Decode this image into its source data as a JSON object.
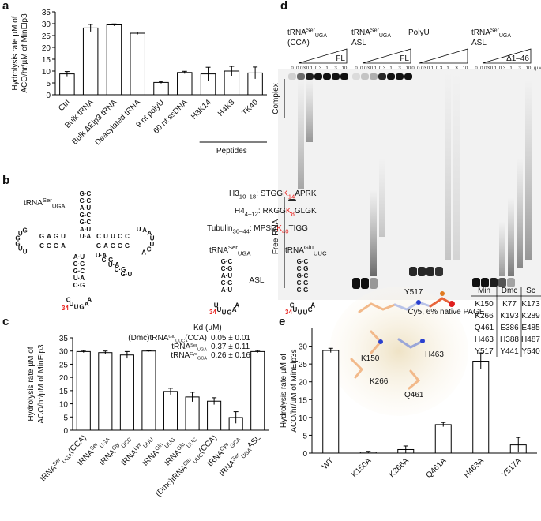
{
  "chart_data": [
    {
      "type": "bar",
      "panel": "a",
      "ylabel": [
        "Hydrolysis rate µM of",
        "ACO/hr/µM of MinElp3"
      ],
      "categories": [
        "Ctrl",
        "Bulk tRNA",
        "Bulk ΔElp3 tRNA",
        "Deacylated tRNA",
        "9 nt polyU",
        "60 nt ssDNA",
        "H3K14",
        "H4K8",
        "TK40"
      ],
      "values": [
        8.8,
        28.2,
        29.5,
        26,
        5.2,
        9.4,
        8.8,
        10,
        9.2
      ],
      "errors": [
        1,
        1.5,
        0.4,
        0.5,
        0.4,
        0.5,
        2.8,
        2,
        2.5
      ],
      "group_label": "Peptides",
      "color": "#ffffff",
      "ylim": [
        0,
        35
      ],
      "yticks": [
        0,
        5,
        10,
        15,
        20,
        25,
        30,
        35
      ]
    },
    {
      "type": "bar",
      "panel": "c",
      "ylabel": [
        "Hydrolysis rate µM of",
        "ACO/hr/µM of MinElp3"
      ],
      "categories": [
        [
          {
            "text": "tRNA"
          },
          {
            "text": "Ser",
            "pos": "sup"
          },
          {
            "text": "UGA",
            "pos": "sub"
          },
          {
            "text": "(CCA)"
          }
        ],
        [
          {
            "text": "tRNA"
          },
          {
            "text": "Ser",
            "pos": "sup"
          },
          {
            "text": "UGA",
            "pos": "sub"
          }
        ],
        [
          {
            "text": "tRNA"
          },
          {
            "text": "Gly",
            "pos": "sup"
          },
          {
            "text": "UCC",
            "pos": "sub"
          }
        ],
        [
          {
            "text": "tRNA"
          },
          {
            "text": "Lys",
            "pos": "sup"
          },
          {
            "text": "UUU",
            "pos": "sub"
          }
        ],
        [
          {
            "text": "tRNA"
          },
          {
            "text": "Gln",
            "pos": "sup"
          },
          {
            "text": "UUG",
            "pos": "sub"
          }
        ],
        [
          {
            "text": "tRNA"
          },
          {
            "text": "Glu",
            "pos": "sup"
          },
          {
            "text": "UUC",
            "pos": "sub"
          }
        ],
        [
          {
            "text": "(Dmc)tRNA"
          },
          {
            "text": "Glu",
            "pos": "sup"
          },
          {
            "text": "UUC",
            "pos": "sub"
          },
          {
            "text": "(CCA)"
          }
        ],
        [
          {
            "text": "tRNA"
          },
          {
            "text": "Cys",
            "pos": "sup"
          },
          {
            "text": "GCA",
            "pos": "sub"
          }
        ],
        [
          {
            "text": "tRNA"
          },
          {
            "text": "Ser",
            "pos": "sup"
          },
          {
            "text": "UGA",
            "pos": "sub"
          },
          {
            "text": "ASL"
          }
        ]
      ],
      "values": [
        29.8,
        29.4,
        28.5,
        30,
        14.7,
        12.6,
        11,
        4.8,
        29.8
      ],
      "errors": [
        0.4,
        0.6,
        1.3,
        0.2,
        1.2,
        1.8,
        1.3,
        2.2,
        0.4
      ],
      "color": "#ffffff",
      "ylim": [
        0,
        35
      ],
      "yticks": [
        0,
        5,
        10,
        15,
        20,
        25,
        30,
        35
      ],
      "kd_title": "Kd (µM)",
      "kd_rows": [
        {
          "name": [
            {
              "text": "(Dmc)tRNA"
            },
            {
              "text": "Glu",
              "pos": "sup"
            },
            {
              "text": "UUC",
              "pos": "sub"
            },
            {
              "text": "(CCA)"
            }
          ],
          "kd": "0.05 ± 0.01"
        },
        {
          "name": [
            {
              "text": "tRNA"
            },
            {
              "text": "Ser",
              "pos": "sup"
            },
            {
              "text": "UGA",
              "pos": "sub"
            }
          ],
          "kd": "0.37 ± 0.11"
        },
        {
          "name": [
            {
              "text": "tRNA"
            },
            {
              "text": "Cys",
              "pos": "sup"
            },
            {
              "text": "GCA",
              "pos": "sub"
            }
          ],
          "kd": "0.26 ± 0.16"
        }
      ]
    },
    {
      "type": "bar",
      "panel": "e",
      "ylabel": [
        "Hydrolysis rate µM of",
        "ACO/hr/µM of MinElp3s"
      ],
      "categories": [
        "WT",
        "K150A",
        "K266A",
        "Q461A",
        "H463A",
        "Y517A"
      ],
      "values": [
        28.8,
        0.3,
        1,
        8,
        25.8,
        2.3
      ],
      "errors": [
        0.6,
        0.2,
        1,
        0.6,
        2.3,
        2.1
      ],
      "color": "#ffffff",
      "ylim": [
        0,
        35
      ],
      "yticks": [
        0,
        5,
        10,
        15,
        20,
        25,
        30
      ],
      "structure_labels": [
        "Y517",
        "K150",
        "H463",
        "Q461",
        "K266"
      ],
      "table": {
        "header": [
          "Min",
          "Dmc",
          "Sc"
        ],
        "rows": [
          [
            "K150",
            "K77",
            "K173"
          ],
          [
            "K266",
            "K193",
            "K289"
          ],
          [
            "Q461",
            "E386",
            "E485"
          ],
          [
            "H463",
            "H388",
            "H487"
          ],
          [
            "Y517",
            "Y441",
            "Y540"
          ]
        ]
      }
    }
  ],
  "panel_b": {
    "panel": "b",
    "cloverleaf_title": [
      {
        "text": "tRNA"
      },
      {
        "text": "Ser",
        "pos": "sup"
      },
      {
        "text": "UGA",
        "pos": "sub"
      }
    ],
    "acceptor": [
      "G·C",
      "G·C",
      "A·U",
      "G·C",
      "G·C",
      "A·U",
      "U·A"
    ],
    "d_top": [
      "U",
      "G",
      "A",
      "G"
    ],
    "d_bottom": [
      "A",
      "G",
      "G",
      "C"
    ],
    "d_loop": [
      "G",
      "U",
      "G",
      "G",
      "U",
      "U"
    ],
    "t_top": [
      "C",
      "U",
      "U",
      "C",
      "C"
    ],
    "t_bottom": [
      "G",
      "A",
      "G",
      "G",
      "G"
    ],
    "t_loop": [
      "U",
      "A",
      "A",
      "U",
      "U",
      "C",
      "A"
    ],
    "variable": [
      "U·A",
      "C·G",
      "U·A",
      "C·G",
      "G·U"
    ],
    "anticodon_stem": [
      "A·U",
      "C·G",
      "G·C",
      "U·A",
      "C·G"
    ],
    "anticodon_loop": [
      "C",
      "U",
      "U",
      "G",
      "A",
      "A"
    ],
    "position": "34",
    "peptides": [
      [
        {
          "text": "H3"
        },
        {
          "text": "10–18",
          "pos": "sub"
        },
        {
          "text": ": STGG"
        },
        {
          "text": "K",
          "color": "#e8231f"
        },
        {
          "text": "14",
          "pos": "sub",
          "color": "#e8231f"
        },
        {
          "text": "APRK"
        }
      ],
      [
        {
          "text": "H4"
        },
        {
          "text": "4–12",
          "pos": "sub"
        },
        {
          "text": ": RKGG"
        },
        {
          "text": "K",
          "color": "#e8231f"
        },
        {
          "text": "8",
          "pos": "sub",
          "color": "#e8231f"
        },
        {
          "text": "GLGK"
        }
      ],
      [
        {
          "text": "Tubulin"
        },
        {
          "text": "36–44",
          "pos": "sub"
        },
        {
          "text": ": MPSD"
        },
        {
          "text": "K",
          "color": "#e8231f"
        },
        {
          "text": "40",
          "pos": "sub",
          "color": "#e8231f"
        },
        {
          "text": "TIGG"
        }
      ]
    ],
    "asl_titles": [
      [
        {
          "text": "tRNA"
        },
        {
          "text": "Ser",
          "pos": "sup"
        },
        {
          "text": "UGA",
          "pos": "sub"
        }
      ],
      [
        {
          "text": "tRNA"
        },
        {
          "text": "Glu",
          "pos": "sup"
        },
        {
          "text": "UUC",
          "pos": "sub"
        }
      ]
    ],
    "asl_label": "ASL",
    "asl_stems": [
      [
        "G·C",
        "C·G",
        "A·U",
        "C·G",
        "A·U"
      ],
      [
        "G·C",
        "C·G",
        "G·C",
        "C·G",
        "C·G"
      ]
    ],
    "asl_loops": [
      [
        "U",
        "U",
        "U",
        "G",
        "A",
        "A"
      ],
      [
        "C",
        "U",
        "U",
        "U",
        "C",
        "A"
      ]
    ]
  },
  "panel_d": {
    "panel": "d",
    "groups": [
      {
        "lines": [
          [
            {
              "text": "tRNA"
            },
            {
              "text": "Ser",
              "pos": "sup"
            },
            {
              "text": "UGA",
              "pos": "sub"
            }
          ],
          [
            {
              "text": "(CCA)"
            }
          ]
        ],
        "tag": "FL"
      },
      {
        "lines": [
          [
            {
              "text": "tRNA"
            },
            {
              "text": "Ser",
              "pos": "sup"
            },
            {
              "text": "UGA",
              "pos": "sub"
            }
          ],
          [
            {
              "text": "ASL"
            }
          ]
        ],
        "tag": "FL"
      },
      {
        "lines": [
          [
            {
              "text": "PolyU"
            }
          ]
        ],
        "tag": ""
      },
      {
        "lines": [
          [
            {
              "text": "tRNA"
            },
            {
              "text": "Ser",
              "pos": "sup"
            },
            {
              "text": "UGA",
              "pos": "sub"
            }
          ],
          [
            {
              "text": "ASL"
            }
          ]
        ],
        "tag": "Δ1–46"
      }
    ],
    "concentrations": [
      "0",
      "0.03",
      "0.1",
      "0.3",
      "1",
      "3",
      "10"
    ],
    "unit": "(µM)",
    "complex_label": "Complex",
    "free_label": "Free RNA",
    "caption": "Cy5, 6% native PAGE"
  }
}
